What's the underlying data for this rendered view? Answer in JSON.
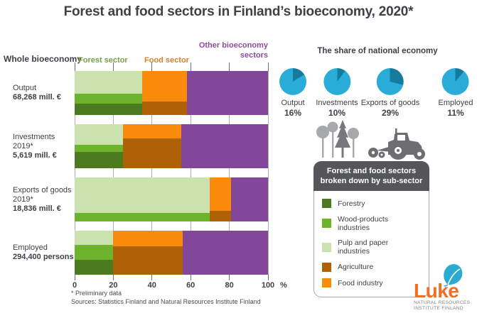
{
  "title": "Forest and food sectors in Finland’s bioeconomy, 2020*",
  "chart_data": {
    "type": "bar",
    "orientation": "horizontal stacked mosaic, widths = % of whole bioeconomy, vertical splits = sub-sector shares",
    "title": "Forest and food sectors in Finland’s bioeconomy, 2020*",
    "x_ticks": [
      0,
      20,
      40,
      60,
      80,
      100
    ],
    "xlim": [
      0,
      100
    ],
    "unit": "%",
    "grid": "vertical gridlines at each 20%",
    "headers": {
      "whole_bioeconomy": "Whole bioeconomy",
      "forest_sector": "Forest sector",
      "food_sector": "Food sector",
      "other_sector": "Other bioeconomy\nsectors"
    },
    "rows": [
      {
        "label": "Output",
        "sublabel": "",
        "value": "68,268 mill. €",
        "sectors": [
          {
            "name": "forest",
            "width_pct": 35,
            "stack": [
              {
                "subsector": "pulp_paper",
                "height_pct": 52
              },
              {
                "subsector": "wood_products",
                "height_pct": 22
              },
              {
                "subsector": "forestry",
                "height_pct": 26
              }
            ]
          },
          {
            "name": "food",
            "width_pct": 23,
            "stack": [
              {
                "subsector": "food_industry",
                "height_pct": 70
              },
              {
                "subsector": "agriculture",
                "height_pct": 30
              }
            ]
          },
          {
            "name": "other",
            "width_pct": 42,
            "stack": [
              {
                "subsector": "other",
                "height_pct": 100
              }
            ]
          }
        ]
      },
      {
        "label": "Investments",
        "sublabel": "2019*",
        "value": "5,619 mill. €",
        "sectors": [
          {
            "name": "forest",
            "width_pct": 25,
            "stack": [
              {
                "subsector": "pulp_paper",
                "height_pct": 47
              },
              {
                "subsector": "wood_products",
                "height_pct": 16
              },
              {
                "subsector": "forestry",
                "height_pct": 37
              }
            ]
          },
          {
            "name": "food",
            "width_pct": 30,
            "stack": [
              {
                "subsector": "food_industry",
                "height_pct": 32
              },
              {
                "subsector": "agriculture",
                "height_pct": 68
              }
            ]
          },
          {
            "name": "other",
            "width_pct": 45,
            "stack": [
              {
                "subsector": "other",
                "height_pct": 100
              }
            ]
          }
        ]
      },
      {
        "label": "Exports of goods",
        "sublabel": "2019*",
        "value": "18,836 mill. €",
        "sectors": [
          {
            "name": "forest",
            "width_pct": 70,
            "stack": [
              {
                "subsector": "pulp_paper",
                "height_pct": 81
              },
              {
                "subsector": "wood_products",
                "height_pct": 19
              },
              {
                "subsector": "forestry",
                "height_pct": 0
              }
            ]
          },
          {
            "name": "food",
            "width_pct": 11,
            "stack": [
              {
                "subsector": "food_industry",
                "height_pct": 75
              },
              {
                "subsector": "agriculture",
                "height_pct": 25
              }
            ]
          },
          {
            "name": "other",
            "width_pct": 19,
            "stack": [
              {
                "subsector": "other",
                "height_pct": 100
              }
            ]
          }
        ]
      },
      {
        "label": "Employed",
        "sublabel": "",
        "value": "294,400 persons",
        "sectors": [
          {
            "name": "forest",
            "width_pct": 20,
            "stack": [
              {
                "subsector": "pulp_paper",
                "height_pct": 33
              },
              {
                "subsector": "wood_products",
                "height_pct": 33
              },
              {
                "subsector": "forestry",
                "height_pct": 34
              }
            ]
          },
          {
            "name": "food",
            "width_pct": 36,
            "stack": [
              {
                "subsector": "food_industry",
                "height_pct": 35
              },
              {
                "subsector": "agriculture",
                "height_pct": 65
              }
            ]
          },
          {
            "name": "other",
            "width_pct": 44,
            "stack": [
              {
                "subsector": "other",
                "height_pct": 100
              }
            ]
          }
        ]
      }
    ],
    "pie_section": {
      "title": "The share of national economy",
      "type": "pie",
      "pies": [
        {
          "label": "Output",
          "pct": 16
        },
        {
          "label": "Investments",
          "pct": 10
        },
        {
          "label": "Exports of goods",
          "pct": 29
        },
        {
          "label": "Employed",
          "pct": 11
        }
      ]
    },
    "legend": {
      "header": "Forest and food sectors\nbroken down by sub-sector",
      "items": [
        {
          "key": "forestry",
          "label": "Forestry"
        },
        {
          "key": "wood_products",
          "label": "Wood-products industries"
        },
        {
          "key": "pulp_paper",
          "label": "Pulp and paper industries"
        },
        {
          "key": "agriculture",
          "label": "Agriculture"
        },
        {
          "key": "food_industry",
          "label": "Food industry"
        }
      ]
    }
  },
  "colors": {
    "forestry": "#4c7a1f",
    "wood_products": "#6db42c",
    "pulp_paper": "#cce2ae",
    "agriculture": "#af6106",
    "food_industry": "#f98a0a",
    "other": "#82479a",
    "pie_light": "#29acd8",
    "pie_dark": "#157a9c",
    "forest_header": "#76a240",
    "food_header": "#de7e26",
    "other_header": "#8e4b9e"
  },
  "footnotes": {
    "line1": "* Preliminary data",
    "line2": "Sources: Statistics Finland and Natural Resources Institute Finland"
  },
  "logo": {
    "name": "Luke",
    "line1": "NATURAL RESOURCES",
    "line2": "INSTITUTE FINLAND"
  }
}
